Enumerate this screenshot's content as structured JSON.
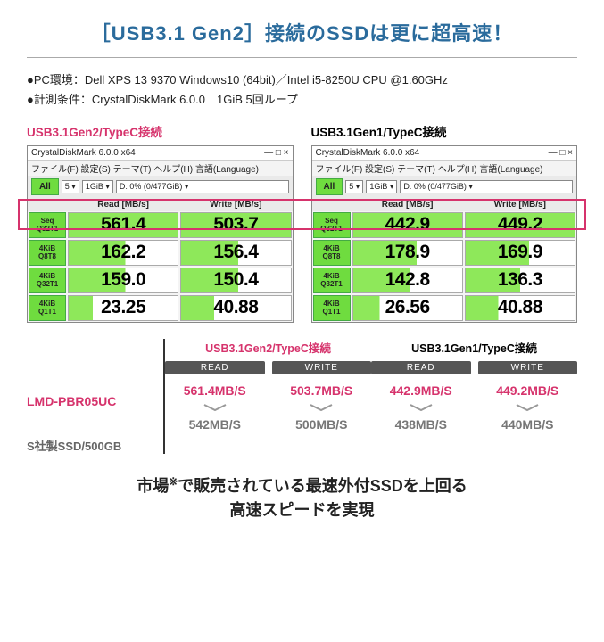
{
  "title": "［USB3.1 Gen2］接続のSSDは更に超高速！",
  "env1": "●PC環境：Dell XPS 13 9370 Windows10 (64bit)／Intel i5-8250U CPU @1.60GHz",
  "env2": "●計測条件：CrystalDiskMark 6.0.0　1GiB 5回ループ",
  "bench": {
    "left": {
      "head": "USB3.1Gen2/TypeC接続",
      "winTitle": "CrystalDiskMark 6.0.0 x64",
      "menu": "ファイル(F) 設定(S) テーマ(T) ヘルプ(H) 言語(Language)",
      "all": "All",
      "sel1": "5 ▾",
      "sel2": "1GiB ▾",
      "sel3": "D: 0% (0/477GiB) ▾",
      "hRead": "Read [MB/s]",
      "hWrite": "Write [MB/s]",
      "rows": [
        {
          "b1": "Seq",
          "b2": "Q32T1",
          "r": "561.4",
          "w": "503.7",
          "rp": 100,
          "wp": 100
        },
        {
          "b1": "4KiB",
          "b2": "Q8T8",
          "r": "162.2",
          "w": "156.4",
          "rp": 52,
          "wp": 52
        },
        {
          "b1": "4KiB",
          "b2": "Q32T1",
          "r": "159.0",
          "w": "150.4",
          "rp": 52,
          "wp": 52
        },
        {
          "b1": "4KiB",
          "b2": "Q1T1",
          "r": "23.25",
          "w": "40.88",
          "rp": 22,
          "wp": 30
        }
      ]
    },
    "right": {
      "head": "USB3.1Gen1/TypeC接続",
      "winTitle": "CrystalDiskMark 6.0.0 x64",
      "menu": "ファイル(F) 設定(S) テーマ(T) ヘルプ(H) 言語(Language)",
      "all": "All",
      "sel1": "5 ▾",
      "sel2": "1GiB ▾",
      "sel3": "D: 0% (0/477GiB) ▾",
      "hRead": "Read [MB/s]",
      "hWrite": "Write [MB/s]",
      "rows": [
        {
          "b1": "Seq",
          "b2": "Q32T1",
          "r": "442.9",
          "w": "449.2",
          "rp": 100,
          "wp": 100
        },
        {
          "b1": "4KiB",
          "b2": "Q8T8",
          "r": "178.9",
          "w": "169.9",
          "rp": 58,
          "wp": 58
        },
        {
          "b1": "4KiB",
          "b2": "Q32T1",
          "r": "142.8",
          "w": "136.3",
          "rp": 52,
          "wp": 50
        },
        {
          "b1": "4KiB",
          "b2": "Q1T1",
          "r": "26.56",
          "w": "40.88",
          "rp": 24,
          "wp": 30
        }
      ]
    }
  },
  "comp": {
    "lab1": "LMD-PBR05UC",
    "lab2": "S社製SSD/500GB",
    "colHeadL": "USB3.1Gen2/TypeC接続",
    "colHeadR": "USB3.1Gen1/TypeC接続",
    "readLbl": "READ",
    "writeLbl": "WRITE",
    "g2": {
      "read1": "561.4MB/S",
      "write1": "503.7MB/S",
      "read2": "542MB/S",
      "write2": "500MB/S"
    },
    "g1": {
      "read1": "442.9MB/S",
      "write1": "449.2MB/S",
      "read2": "438MB/S",
      "write2": "440MB/S"
    }
  },
  "bottom1": "市場",
  "bottomNote": "※",
  "bottom2": "で販売されている最速外付SSDを上回る",
  "bottom3": "高速スピードを実現"
}
